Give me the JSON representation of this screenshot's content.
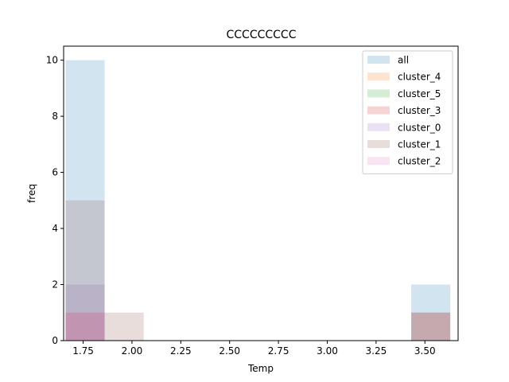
{
  "chart_data": {
    "type": "bar",
    "title": "CCCCCCCCC",
    "xlabel": "Temp",
    "ylabel": "freq",
    "xlim": [
      1.65,
      3.67
    ],
    "ylim": [
      0,
      10.5
    ],
    "xticks": [
      1.75,
      2.0,
      2.25,
      2.5,
      2.75,
      3.0,
      3.25,
      3.5
    ],
    "xtick_labels": [
      "1.75",
      "2.00",
      "2.25",
      "2.50",
      "2.75",
      "3.00",
      "3.25",
      "3.50"
    ],
    "yticks": [
      0,
      2,
      4,
      6,
      8,
      10
    ],
    "ytick_labels": [
      "0",
      "2",
      "4",
      "6",
      "8",
      "10"
    ],
    "bin_width": 0.2,
    "legend_position": "top-right",
    "series": [
      {
        "name": "all",
        "color": "#1f77b4",
        "bins": [
          {
            "x0": 1.66,
            "count": 10
          },
          {
            "x0": 3.43,
            "count": 2
          }
        ]
      },
      {
        "name": "cluster_4",
        "color": "#ff7f0e",
        "bins": []
      },
      {
        "name": "cluster_5",
        "color": "#2ca02c",
        "bins": []
      },
      {
        "name": "cluster_3",
        "color": "#d62728",
        "bins": [
          {
            "x0": 1.66,
            "count": 1
          },
          {
            "x0": 3.43,
            "count": 1
          }
        ]
      },
      {
        "name": "cluster_0",
        "color": "#9467bd",
        "bins": [
          {
            "x0": 1.66,
            "count": 2
          }
        ]
      },
      {
        "name": "cluster_1",
        "color": "#8c564b",
        "bins": [
          {
            "x0": 1.66,
            "count": 5
          },
          {
            "x0": 1.86,
            "count": 1
          },
          {
            "x0": 3.43,
            "count": 1
          }
        ]
      },
      {
        "name": "cluster_2",
        "color": "#e377c2",
        "bins": [
          {
            "x0": 1.66,
            "count": 1
          }
        ]
      }
    ]
  }
}
